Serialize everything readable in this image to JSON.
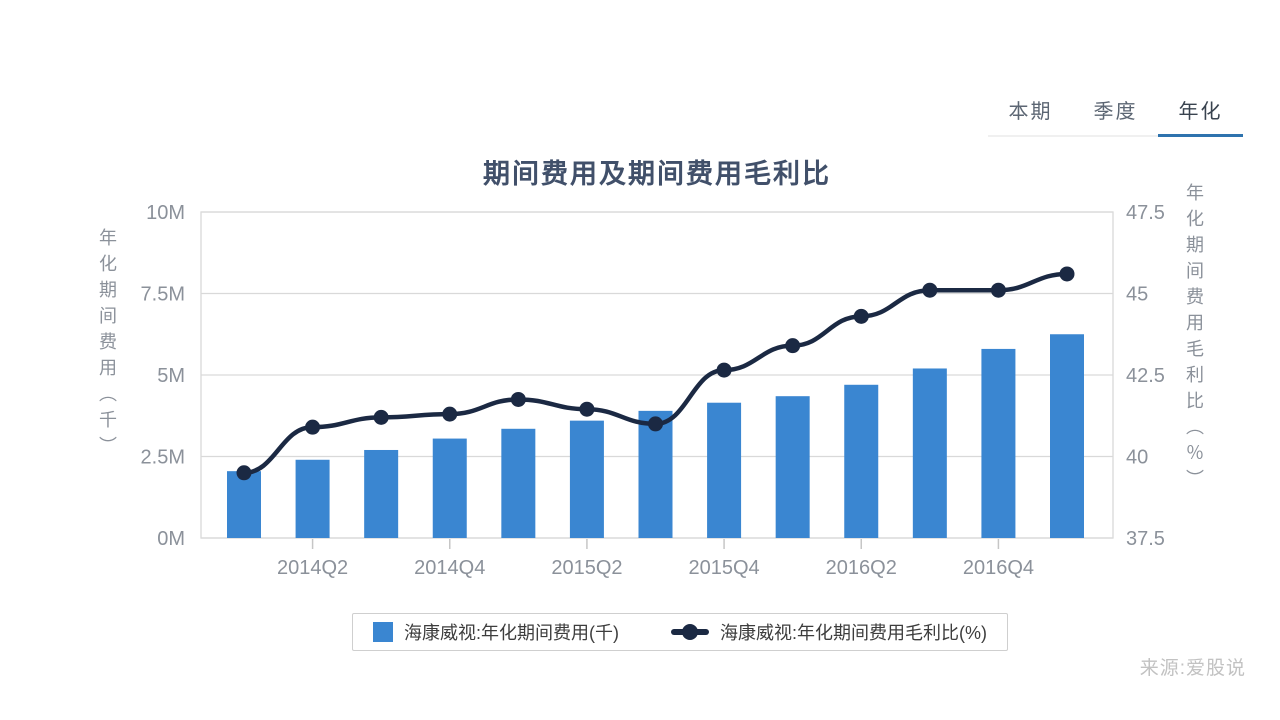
{
  "tabs": {
    "items": [
      {
        "label": "本期",
        "active": false
      },
      {
        "label": "季度",
        "active": false
      },
      {
        "label": "年化",
        "active": true
      }
    ]
  },
  "title": "期间费用及期间费用毛利比",
  "source": "来源:爱股说",
  "legend": [
    {
      "type": "bar",
      "label": "海康威视:年化期间费用(千)"
    },
    {
      "type": "line",
      "label": "海康威视:年化期间费用毛利比(%)"
    }
  ],
  "colors": {
    "bar": "#3a86d1",
    "line": "#1b2943",
    "accent": "#2e73ae",
    "grid": "#d9d9d9",
    "tick_text": "#8b919a"
  },
  "chart_data": {
    "type": "bar+line combo",
    "title": "期间费用及期间费用毛利比",
    "categories": [
      "2014Q1",
      "2014Q2",
      "2014Q3",
      "2014Q4",
      "2015Q1",
      "2015Q2",
      "2015Q3",
      "2015Q4",
      "2016Q1",
      "2016Q2",
      "2016Q3",
      "2016Q4",
      "2017Q1"
    ],
    "x_tick_labels": [
      "2014Q2",
      "2014Q4",
      "2015Q2",
      "2015Q4",
      "2016Q2",
      "2016Q4"
    ],
    "x_tick_indices": [
      1,
      3,
      5,
      7,
      9,
      11
    ],
    "series": [
      {
        "name": "海康威视:年化期间费用(千)",
        "type": "bar",
        "axis": "left",
        "unit": "M",
        "values": [
          2.05,
          2.4,
          2.7,
          3.05,
          3.35,
          3.6,
          3.9,
          4.15,
          4.35,
          4.7,
          5.2,
          5.8,
          6.25
        ]
      },
      {
        "name": "海康威视:年化期间费用毛利比(%)",
        "type": "line",
        "axis": "right",
        "unit": "%",
        "values": [
          39.5,
          40.9,
          41.2,
          41.3,
          41.75,
          41.45,
          41.0,
          42.65,
          43.4,
          44.3,
          45.1,
          45.1,
          45.6
        ]
      }
    ],
    "left_axis": {
      "title": "年化期间费用（千）",
      "ticks": [
        "0M",
        "2.5M",
        "5M",
        "7.5M",
        "10M"
      ],
      "tick_values": [
        0,
        2.5,
        5,
        7.5,
        10
      ],
      "min": 0,
      "max": 10
    },
    "right_axis": {
      "title": "年化期间费用毛利比（％）",
      "ticks": [
        "37.5",
        "40",
        "42.5",
        "45",
        "47.5"
      ],
      "tick_values": [
        37.5,
        40,
        42.5,
        45,
        47.5
      ],
      "min": 37.5,
      "max": 47.5
    },
    "grid": true,
    "legend_position": "bottom"
  }
}
